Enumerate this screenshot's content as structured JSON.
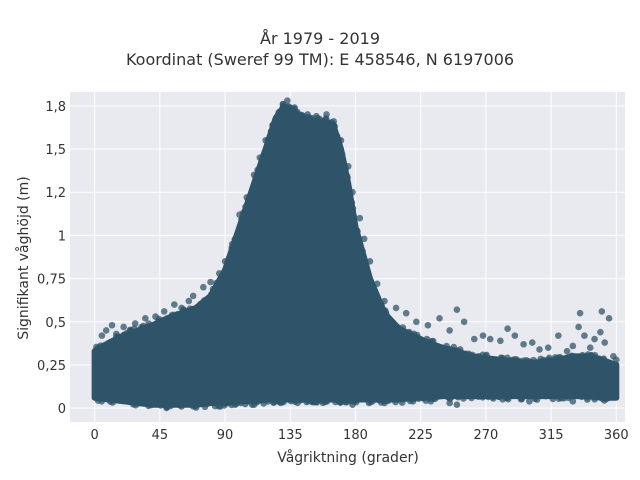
{
  "chart_data": {
    "type": "scatter",
    "title": "År 1979 - 2019",
    "subtitle": "Koordinat (Sweref 99 TM): E 458546, N 6197006",
    "xlabel": "Vågriktning (grader)",
    "ylabel": "Signifikant våghöjd (m)",
    "xlim": [
      -17,
      366
    ],
    "ylim": [
      -0.08,
      1.83
    ],
    "x_ticks": [
      0,
      45,
      90,
      135,
      180,
      225,
      270,
      315,
      360
    ],
    "x_tick_labels": [
      "0",
      "45",
      "90",
      "135",
      "180",
      "225",
      "270",
      "315",
      "360"
    ],
    "y_ticks": [
      0,
      0.25,
      0.5,
      0.75,
      1,
      1.25,
      1.5,
      1.75
    ],
    "y_tick_labels": [
      "0",
      "0,25",
      "0,5",
      "0,75",
      "1",
      "1,2",
      "1,5",
      "1,8"
    ],
    "grid": true,
    "marker_color": "#2f5469",
    "envelope": {
      "x": [
        0,
        10,
        20,
        30,
        40,
        50,
        60,
        70,
        80,
        90,
        100,
        110,
        120,
        125,
        130,
        135,
        140,
        145,
        150,
        155,
        160,
        165,
        170,
        175,
        180,
        190,
        200,
        210,
        220,
        230,
        240,
        250,
        260,
        270,
        280,
        290,
        300,
        310,
        320,
        330,
        340,
        350,
        360
      ],
      "y_max": [
        0.33,
        0.38,
        0.42,
        0.45,
        0.48,
        0.52,
        0.55,
        0.58,
        0.65,
        0.8,
        1.05,
        1.3,
        1.55,
        1.68,
        1.74,
        1.74,
        1.7,
        1.67,
        1.66,
        1.66,
        1.66,
        1.63,
        1.5,
        1.3,
        1.05,
        0.75,
        0.55,
        0.46,
        0.42,
        0.38,
        0.35,
        0.33,
        0.3,
        0.29,
        0.28,
        0.27,
        0.26,
        0.27,
        0.28,
        0.3,
        0.3,
        0.28,
        0.25
      ],
      "y_min": [
        0.06,
        0.05,
        0.04,
        0.03,
        0.02,
        0.02,
        0.02,
        0.02,
        0.03,
        0.03,
        0.04,
        0.04,
        0.05,
        0.05,
        0.05,
        0.05,
        0.05,
        0.05,
        0.05,
        0.05,
        0.05,
        0.05,
        0.05,
        0.05,
        0.05,
        0.05,
        0.05,
        0.05,
        0.06,
        0.06,
        0.07,
        0.07,
        0.07,
        0.07,
        0.07,
        0.07,
        0.07,
        0.07,
        0.07,
        0.07,
        0.07,
        0.06,
        0.06
      ]
    },
    "outliers": [
      [
        3,
        0.35
      ],
      [
        5,
        0.42
      ],
      [
        8,
        0.45
      ],
      [
        12,
        0.48
      ],
      [
        15,
        0.43
      ],
      [
        20,
        0.47
      ],
      [
        25,
        0.45
      ],
      [
        28,
        0.49
      ],
      [
        35,
        0.52
      ],
      [
        42,
        0.53
      ],
      [
        48,
        0.56
      ],
      [
        55,
        0.6
      ],
      [
        60,
        0.58
      ],
      [
        65,
        0.62
      ],
      [
        68,
        0.65
      ],
      [
        75,
        0.7
      ],
      [
        80,
        0.73
      ],
      [
        86,
        0.78
      ],
      [
        90,
        0.85
      ],
      [
        95,
        0.95
      ],
      [
        100,
        1.12
      ],
      [
        105,
        1.22
      ],
      [
        110,
        1.35
      ],
      [
        114,
        1.45
      ],
      [
        118,
        1.55
      ],
      [
        123,
        1.64
      ],
      [
        127,
        1.71
      ],
      [
        130,
        1.76
      ],
      [
        133,
        1.78
      ],
      [
        138,
        1.74
      ],
      [
        147,
        1.7
      ],
      [
        153,
        1.69
      ],
      [
        160,
        1.7
      ],
      [
        165,
        1.66
      ],
      [
        170,
        1.55
      ],
      [
        175,
        1.4
      ],
      [
        178,
        1.25
      ],
      [
        183,
        1.1
      ],
      [
        186,
        0.98
      ],
      [
        190,
        0.85
      ],
      [
        195,
        0.72
      ],
      [
        200,
        0.62
      ],
      [
        208,
        0.58
      ],
      [
        215,
        0.55
      ],
      [
        222,
        0.5
      ],
      [
        230,
        0.48
      ],
      [
        238,
        0.52
      ],
      [
        245,
        0.45
      ],
      [
        250,
        0.57
      ],
      [
        255,
        0.5
      ],
      [
        262,
        0.4
      ],
      [
        268,
        0.42
      ],
      [
        273,
        0.4
      ],
      [
        280,
        0.39
      ],
      [
        285,
        0.46
      ],
      [
        290,
        0.42
      ],
      [
        296,
        0.37
      ],
      [
        302,
        0.38
      ],
      [
        307,
        0.34
      ],
      [
        313,
        0.35
      ],
      [
        320,
        0.42
      ],
      [
        326,
        0.33
      ],
      [
        330,
        0.36
      ],
      [
        334,
        0.47
      ],
      [
        335,
        0.55
      ],
      [
        338,
        0.42
      ],
      [
        342,
        0.35
      ],
      [
        345,
        0.4
      ],
      [
        349,
        0.44
      ],
      [
        350,
        0.56
      ],
      [
        352,
        0.38
      ],
      [
        355,
        0.52
      ],
      [
        358,
        0.3
      ],
      [
        360,
        0.28
      ],
      [
        178,
        0.02
      ],
      [
        245,
        0.03
      ],
      [
        300,
        0.04
      ],
      [
        340,
        0.05
      ],
      [
        60,
        0.01
      ],
      [
        110,
        0.02
      ],
      [
        200,
        0.03
      ],
      [
        232,
        0.04
      ],
      [
        250,
        0.02
      ],
      [
        330,
        0.04
      ]
    ]
  }
}
